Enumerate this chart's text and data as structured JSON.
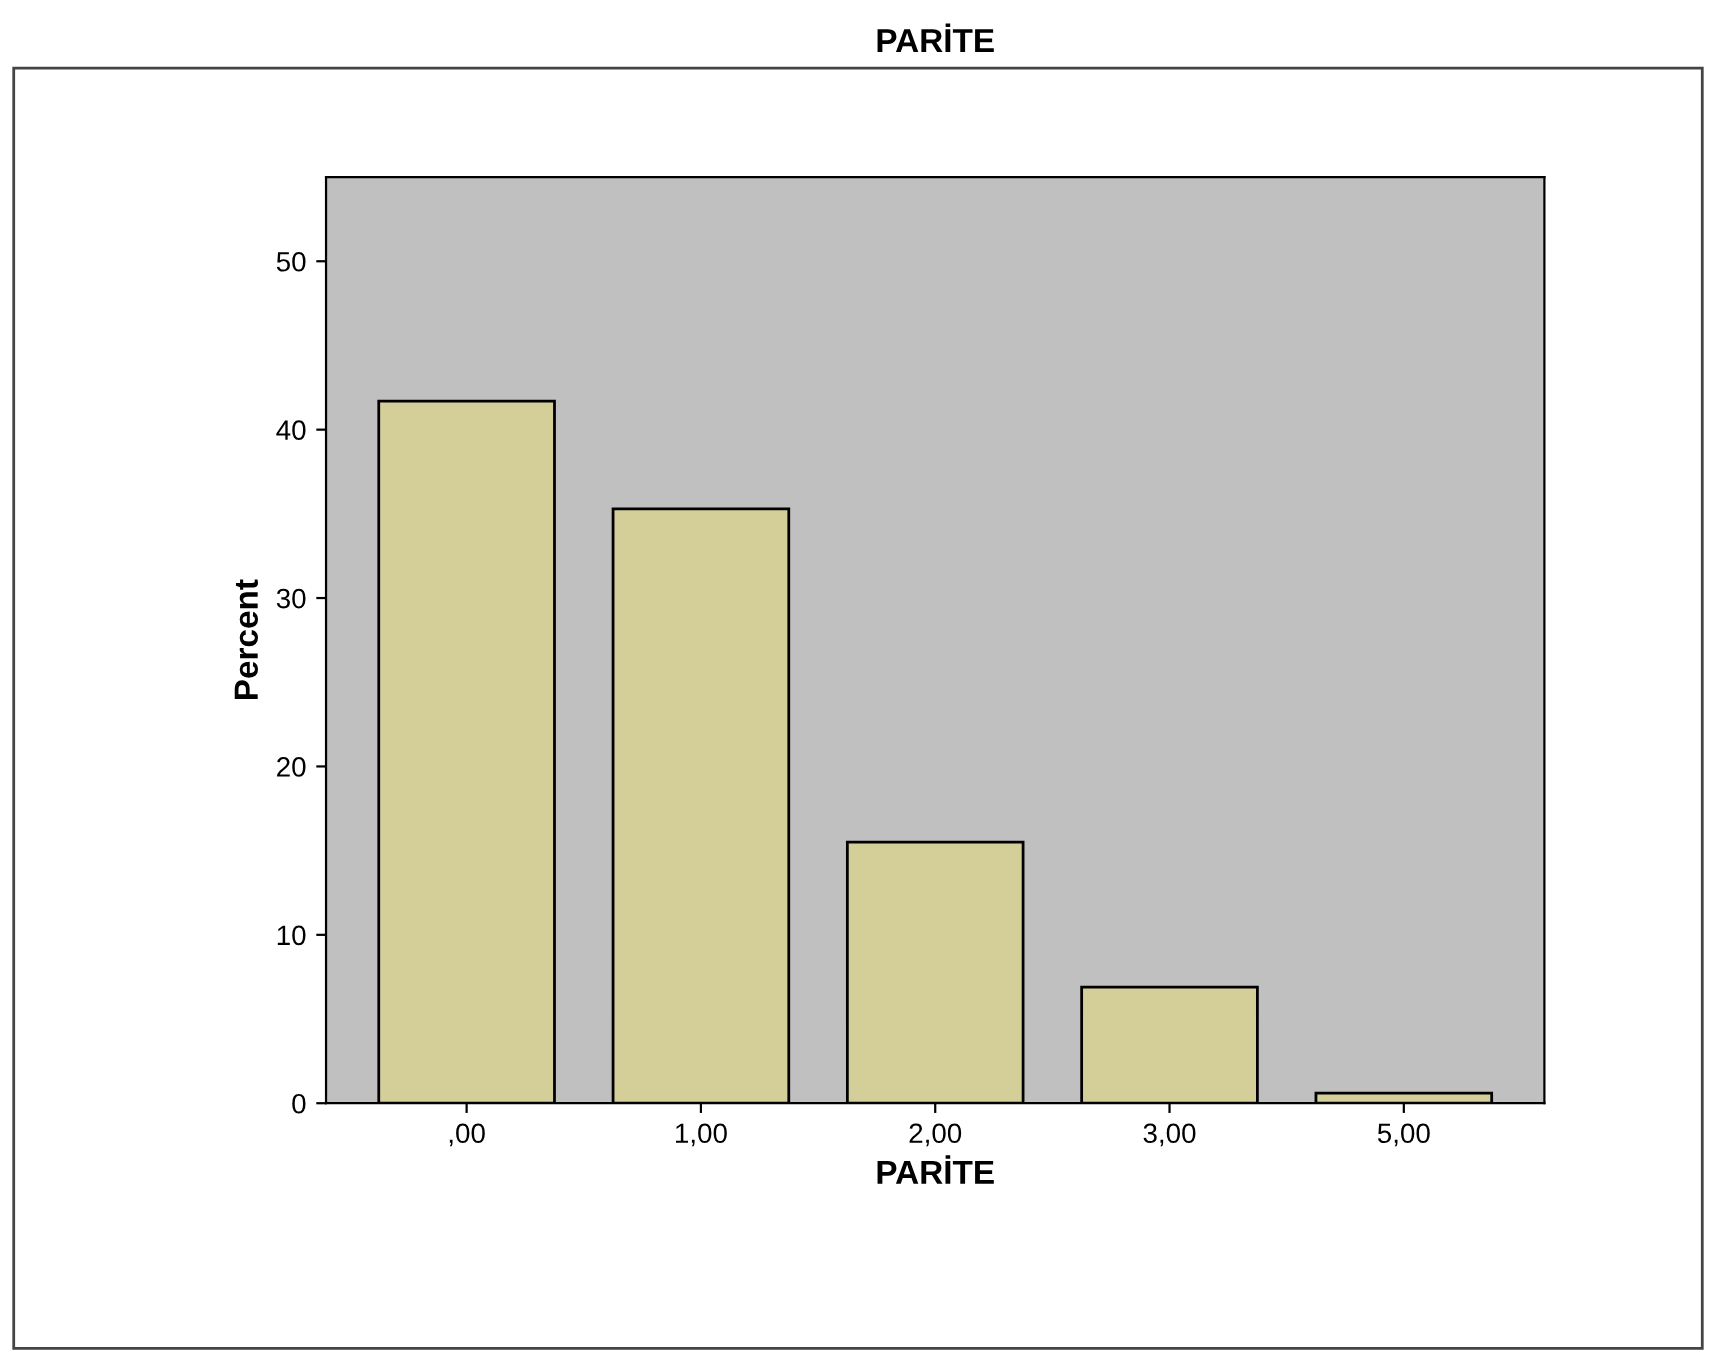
{
  "chart_data": {
    "type": "bar",
    "title": "PARİTE",
    "xlabel": "PARİTE",
    "ylabel": "Percent",
    "categories": [
      ",00",
      "1,00",
      "2,00",
      "3,00",
      "5,00"
    ],
    "values": [
      41.7,
      35.3,
      15.5,
      6.9,
      0.6
    ],
    "color": "#d4cf98",
    "ylim": [
      0,
      55
    ],
    "yticks": [
      0,
      10,
      20,
      30,
      40,
      50
    ],
    "grid": false
  }
}
